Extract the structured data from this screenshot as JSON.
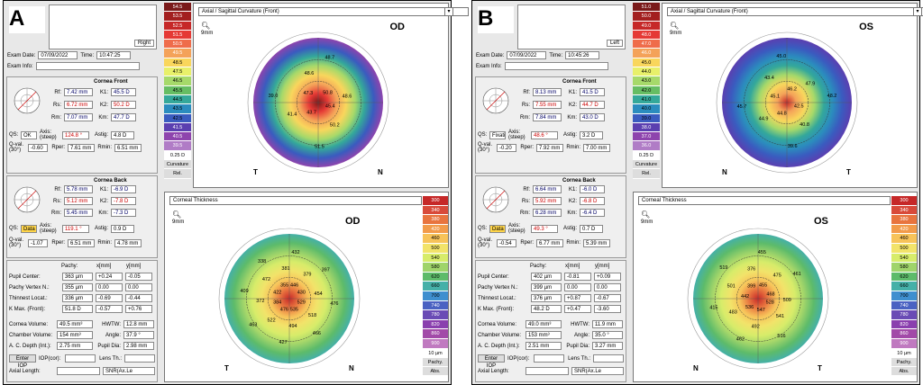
{
  "A": {
    "letter": "A",
    "eye": "Right",
    "exam_date_label": "Exam Date:",
    "exam_date": "07/09/2022",
    "time_label": "Time:",
    "time": "10:47:25",
    "exam_info_label": "Exam Info:",
    "front": {
      "title": "Cornea Front",
      "rf": "7.42 mm",
      "rs": "6.72 mm",
      "rm": "7.07 mm",
      "k1": "45.5 D",
      "k2": "50.2 D",
      "km": "47.7 D",
      "qs": "OK",
      "axis": "124.8 °",
      "astig": "4.8 D",
      "qval": "-0.60",
      "rper": "7.61 mm",
      "rmin": "6.51 mm"
    },
    "back": {
      "title": "Cornea Back",
      "rf": "5.78 mm",
      "rs": "5.12 mm",
      "rm": "5.45 mm",
      "k1": "-6.9 D",
      "k2": "-7.8 D",
      "km": "-7.3 D",
      "qs": "Data",
      "axis": "119.1 °",
      "astig": "0.9 D",
      "qval": "-1.07",
      "rper": "6.51 mm",
      "rmin": "4.78 mm"
    },
    "pachy": {
      "center": "363 µm",
      "center_x": "+0.24",
      "center_y": "-0.05",
      "vertex": "355 µm",
      "vertex_x": "0.00",
      "vertex_y": "0.00",
      "thinnest": "336 µm",
      "thin_x": "-0.69",
      "thin_y": "-0.44",
      "kmax": "51.8 D",
      "kmax_x": "-0.57",
      "kmax_y": "+0.76"
    },
    "volume": "49.5 mm³",
    "hwtw": "12.8 mm",
    "chamber": "154 mm³",
    "angle": "37.9 °",
    "acdepth": "2.75 mm",
    "pupil": "2.98 mm",
    "curv_scale": [
      "54.5",
      "53.5",
      "52.5",
      "51.5",
      "50.5",
      "49.5",
      "48.5",
      "47.5",
      "46.5",
      "45.5",
      "44.5",
      "43.5",
      "42.5",
      "41.5",
      "40.5",
      "39.5"
    ],
    "curv_step": "0.25 D",
    "curv_values": [
      "45.4",
      "50.2",
      "51.5",
      "43.7",
      "41.4",
      "39.0",
      "47.3",
      "48.6",
      "48.7",
      "50.8",
      "48.6"
    ],
    "thick_values": [
      "529",
      "518",
      "466",
      "535",
      "494",
      "427",
      "476",
      "522",
      "463",
      "384",
      "372",
      "409",
      "422",
      "472",
      "338",
      "355",
      "381",
      "432",
      "446",
      "379",
      "397",
      "430",
      "454",
      "476"
    ],
    "od": "OD"
  },
  "B": {
    "letter": "B",
    "eye": "Left",
    "exam_date": "07/09/2022",
    "time": "10:45:26",
    "front": {
      "title": "Cornea Front",
      "rf": "8.13 mm",
      "rs": "7.55 mm",
      "rm": "7.84 mm",
      "k1": "41.5 D",
      "k2": "44.7 D",
      "km": "43.0 D",
      "qs": "Fixati",
      "axis": "48.6 °",
      "astig": "3.2 D",
      "qval": "-0.20",
      "rper": "7.92 mm",
      "rmin": "7.00 mm"
    },
    "back": {
      "title": "Cornea Back",
      "rf": "6.64 mm",
      "rs": "5.92 mm",
      "rm": "6.28 mm",
      "k1": "-6.0 D",
      "k2": "-6.8 D",
      "km": "-6.4 D",
      "qs": "Data",
      "axis": "49.3 °",
      "astig": "0.7 D",
      "qval": "-0.54",
      "rper": "6.77 mm",
      "rmin": "5.39 mm"
    },
    "pachy": {
      "center": "402 µm",
      "center_x": "-0.81",
      "center_y": "+0.09",
      "vertex": "399 µm",
      "vertex_x": "0.00",
      "vertex_y": "0.00",
      "thinnest": "376 µm",
      "thin_x": "+0.87",
      "thin_y": "-0.67",
      "kmax": "48.2 D",
      "kmax_x": "+0.47",
      "kmax_y": "-3.60"
    },
    "volume": "49.0 mm³",
    "hwtw": "11.9 mm",
    "chamber": "153 mm³",
    "angle": "35.0 °",
    "acdepth": "2.51 mm",
    "pupil": "3.27 mm",
    "curv_scale": [
      "51.0",
      "50.0",
      "49.0",
      "48.0",
      "47.0",
      "46.0",
      "45.0",
      "44.0",
      "43.0",
      "42.0",
      "41.0",
      "40.0",
      "39.0",
      "38.0",
      "37.0",
      "36.0"
    ],
    "curv_step": "0.25 D",
    "curv_values": [
      "42.5",
      "40.8",
      "39.6",
      "44.8",
      "44.9",
      "45.7",
      "45.1",
      "43.4",
      "45.0",
      "46.2",
      "47.9",
      "48.2"
    ],
    "thick_values": [
      "528",
      "541",
      "516",
      "547",
      "492",
      "462",
      "536",
      "483",
      "415",
      "442",
      "501",
      "519",
      "399",
      "376",
      "455",
      "455",
      "475",
      "461",
      "468",
      "509"
    ],
    "od": "OS"
  },
  "common": {
    "map_title_curv": "Axial / Sagittal Curvature (Front)",
    "map_title_thick": "Corneal Thickness",
    "curvature": "Curvature",
    "rel": "Rel.",
    "pachy_lbl": "Pachy.",
    "abs": "Abs.",
    "step_thick": "10 µm",
    "zoom": "9mm",
    "thick_scale": [
      "300",
      "340",
      "380",
      "420",
      "460",
      "500",
      "540",
      "580",
      "620",
      "660",
      "700",
      "740",
      "780",
      "820",
      "860",
      "900"
    ],
    "labels": {
      "rf": "Rf:",
      "rs": "Rs:",
      "rm": "Rm:",
      "k1": "K1:",
      "k2": "K2:",
      "km": "Km:",
      "qs": "QS:",
      "axis": "Axis: (steep)",
      "astig": "Astig:",
      "qval": "Q-val. (30°)",
      "rper": "Rper:",
      "rmin": "Rmin:",
      "pachy": "Pachy:",
      "x": "x[mm]",
      "y": "y[mm]",
      "pupil_center": "Pupil Center:",
      "pachy_vertex": "Pachy Vertex N.:",
      "thinnest": "Thinnest Locat.:",
      "kmax": "K Max. (Front):",
      "volume": "Cornea Volume:",
      "hwtw": "HWTW:",
      "chamber": "Chamber Volume:",
      "angle": "Angle:",
      "acdepth": "A. C. Depth (Int.):",
      "pupil": "Pupil Dia:",
      "enter_iop": "Enter IOP",
      "iop": "IOP(cor):",
      "lens": "Lens Th.:",
      "axial": "Axial Length:",
      "snr": "SNR(Ax.Le"
    },
    "T": "T",
    "N": "N"
  }
}
